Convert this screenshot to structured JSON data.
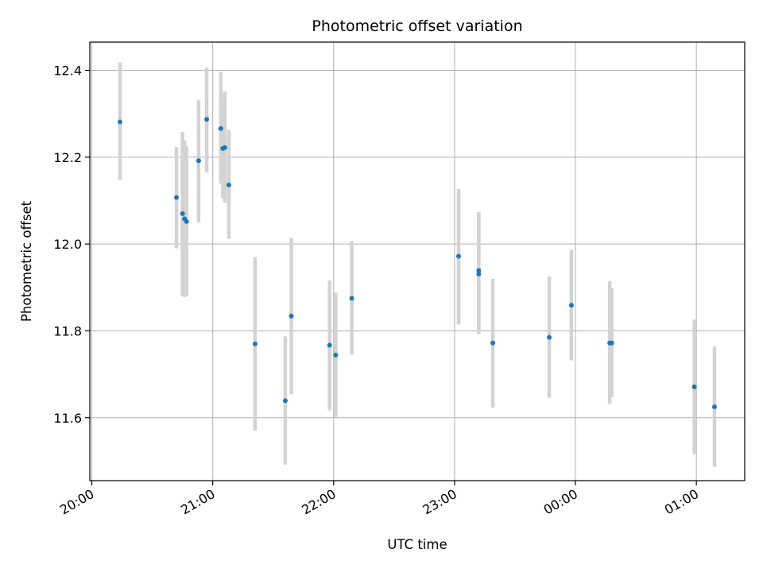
{
  "chart_data": {
    "type": "scatter",
    "title": "Photometric offset variation",
    "xlabel": "UTC time",
    "ylabel": "Photometric offset",
    "x_tick_labels": [
      "20:00",
      "21:00",
      "22:00",
      "23:00",
      "00:00",
      "01:00"
    ],
    "y_ticks": [
      11.6,
      11.8,
      12.0,
      12.2,
      12.4
    ],
    "y_tick_labels": [
      "11.6",
      "11.8",
      "12.0",
      "12.2",
      "12.4"
    ],
    "xlim": [
      "19:59",
      "01:24"
    ],
    "ylim": [
      11.455,
      12.465
    ],
    "grid": true,
    "colors": {
      "points": "#1f77b4",
      "error_bars": "#d3d3d3",
      "grid": "#b0b0b0"
    },
    "series": [
      {
        "points": [
          {
            "x": "20:14",
            "y": 12.281,
            "err_low": 0.133,
            "err_high": 0.137
          },
          {
            "x": "20:42",
            "y": 12.107,
            "err_low": 0.117,
            "err_high": 0.116
          },
          {
            "x": "20:45",
            "y": 12.07,
            "err_low": 0.19,
            "err_high": 0.188
          },
          {
            "x": "20:46",
            "y": 12.058,
            "err_low": 0.18,
            "err_high": 0.18
          },
          {
            "x": "20:47",
            "y": 12.052,
            "err_low": 0.172,
            "err_high": 0.173
          },
          {
            "x": "20:53",
            "y": 12.192,
            "err_low": 0.142,
            "err_high": 0.139
          },
          {
            "x": "20:57",
            "y": 12.287,
            "err_low": 0.122,
            "err_high": 0.12
          },
          {
            "x": "21:04",
            "y": 12.266,
            "err_low": 0.127,
            "err_high": 0.131
          },
          {
            "x": "21:05",
            "y": 12.22,
            "err_low": 0.115,
            "err_high": 0.118
          },
          {
            "x": "21:06",
            "y": 12.222,
            "err_low": 0.127,
            "err_high": 0.129
          },
          {
            "x": "21:08",
            "y": 12.136,
            "err_low": 0.124,
            "err_high": 0.127
          },
          {
            "x": "21:21",
            "y": 11.77,
            "err_low": 0.2,
            "err_high": 0.2
          },
          {
            "x": "21:36",
            "y": 11.639,
            "err_low": 0.147,
            "err_high": 0.148
          },
          {
            "x": "21:39",
            "y": 11.834,
            "err_low": 0.18,
            "err_high": 0.18
          },
          {
            "x": "21:58",
            "y": 11.767,
            "err_low": 0.15,
            "err_high": 0.149
          },
          {
            "x": "22:01",
            "y": 11.744,
            "err_low": 0.143,
            "err_high": 0.144
          },
          {
            "x": "22:09",
            "y": 11.875,
            "err_low": 0.13,
            "err_high": 0.132
          },
          {
            "x": "23:02",
            "y": 11.972,
            "err_low": 0.157,
            "err_high": 0.155
          },
          {
            "x": "23:12",
            "y": 11.931,
            "err_low": 0.138,
            "err_high": 0.142
          },
          {
            "x": "23:12",
            "y": 11.939,
            "err_low": 0.146,
            "err_high": 0.134
          },
          {
            "x": "23:19",
            "y": 11.772,
            "err_low": 0.149,
            "err_high": 0.148
          },
          {
            "x": "23:47",
            "y": 11.785,
            "err_low": 0.139,
            "err_high": 0.14
          },
          {
            "x": "23:58",
            "y": 11.859,
            "err_low": 0.127,
            "err_high": 0.128
          },
          {
            "x": "00:17",
            "y": 11.772,
            "err_low": 0.14,
            "err_high": 0.142
          },
          {
            "x": "00:18",
            "y": 11.772,
            "err_low": 0.125,
            "err_high": 0.126
          },
          {
            "x": "00:59",
            "y": 11.671,
            "err_low": 0.155,
            "err_high": 0.155
          },
          {
            "x": "01:09",
            "y": 11.625,
            "err_low": 0.138,
            "err_high": 0.139
          }
        ]
      }
    ]
  }
}
